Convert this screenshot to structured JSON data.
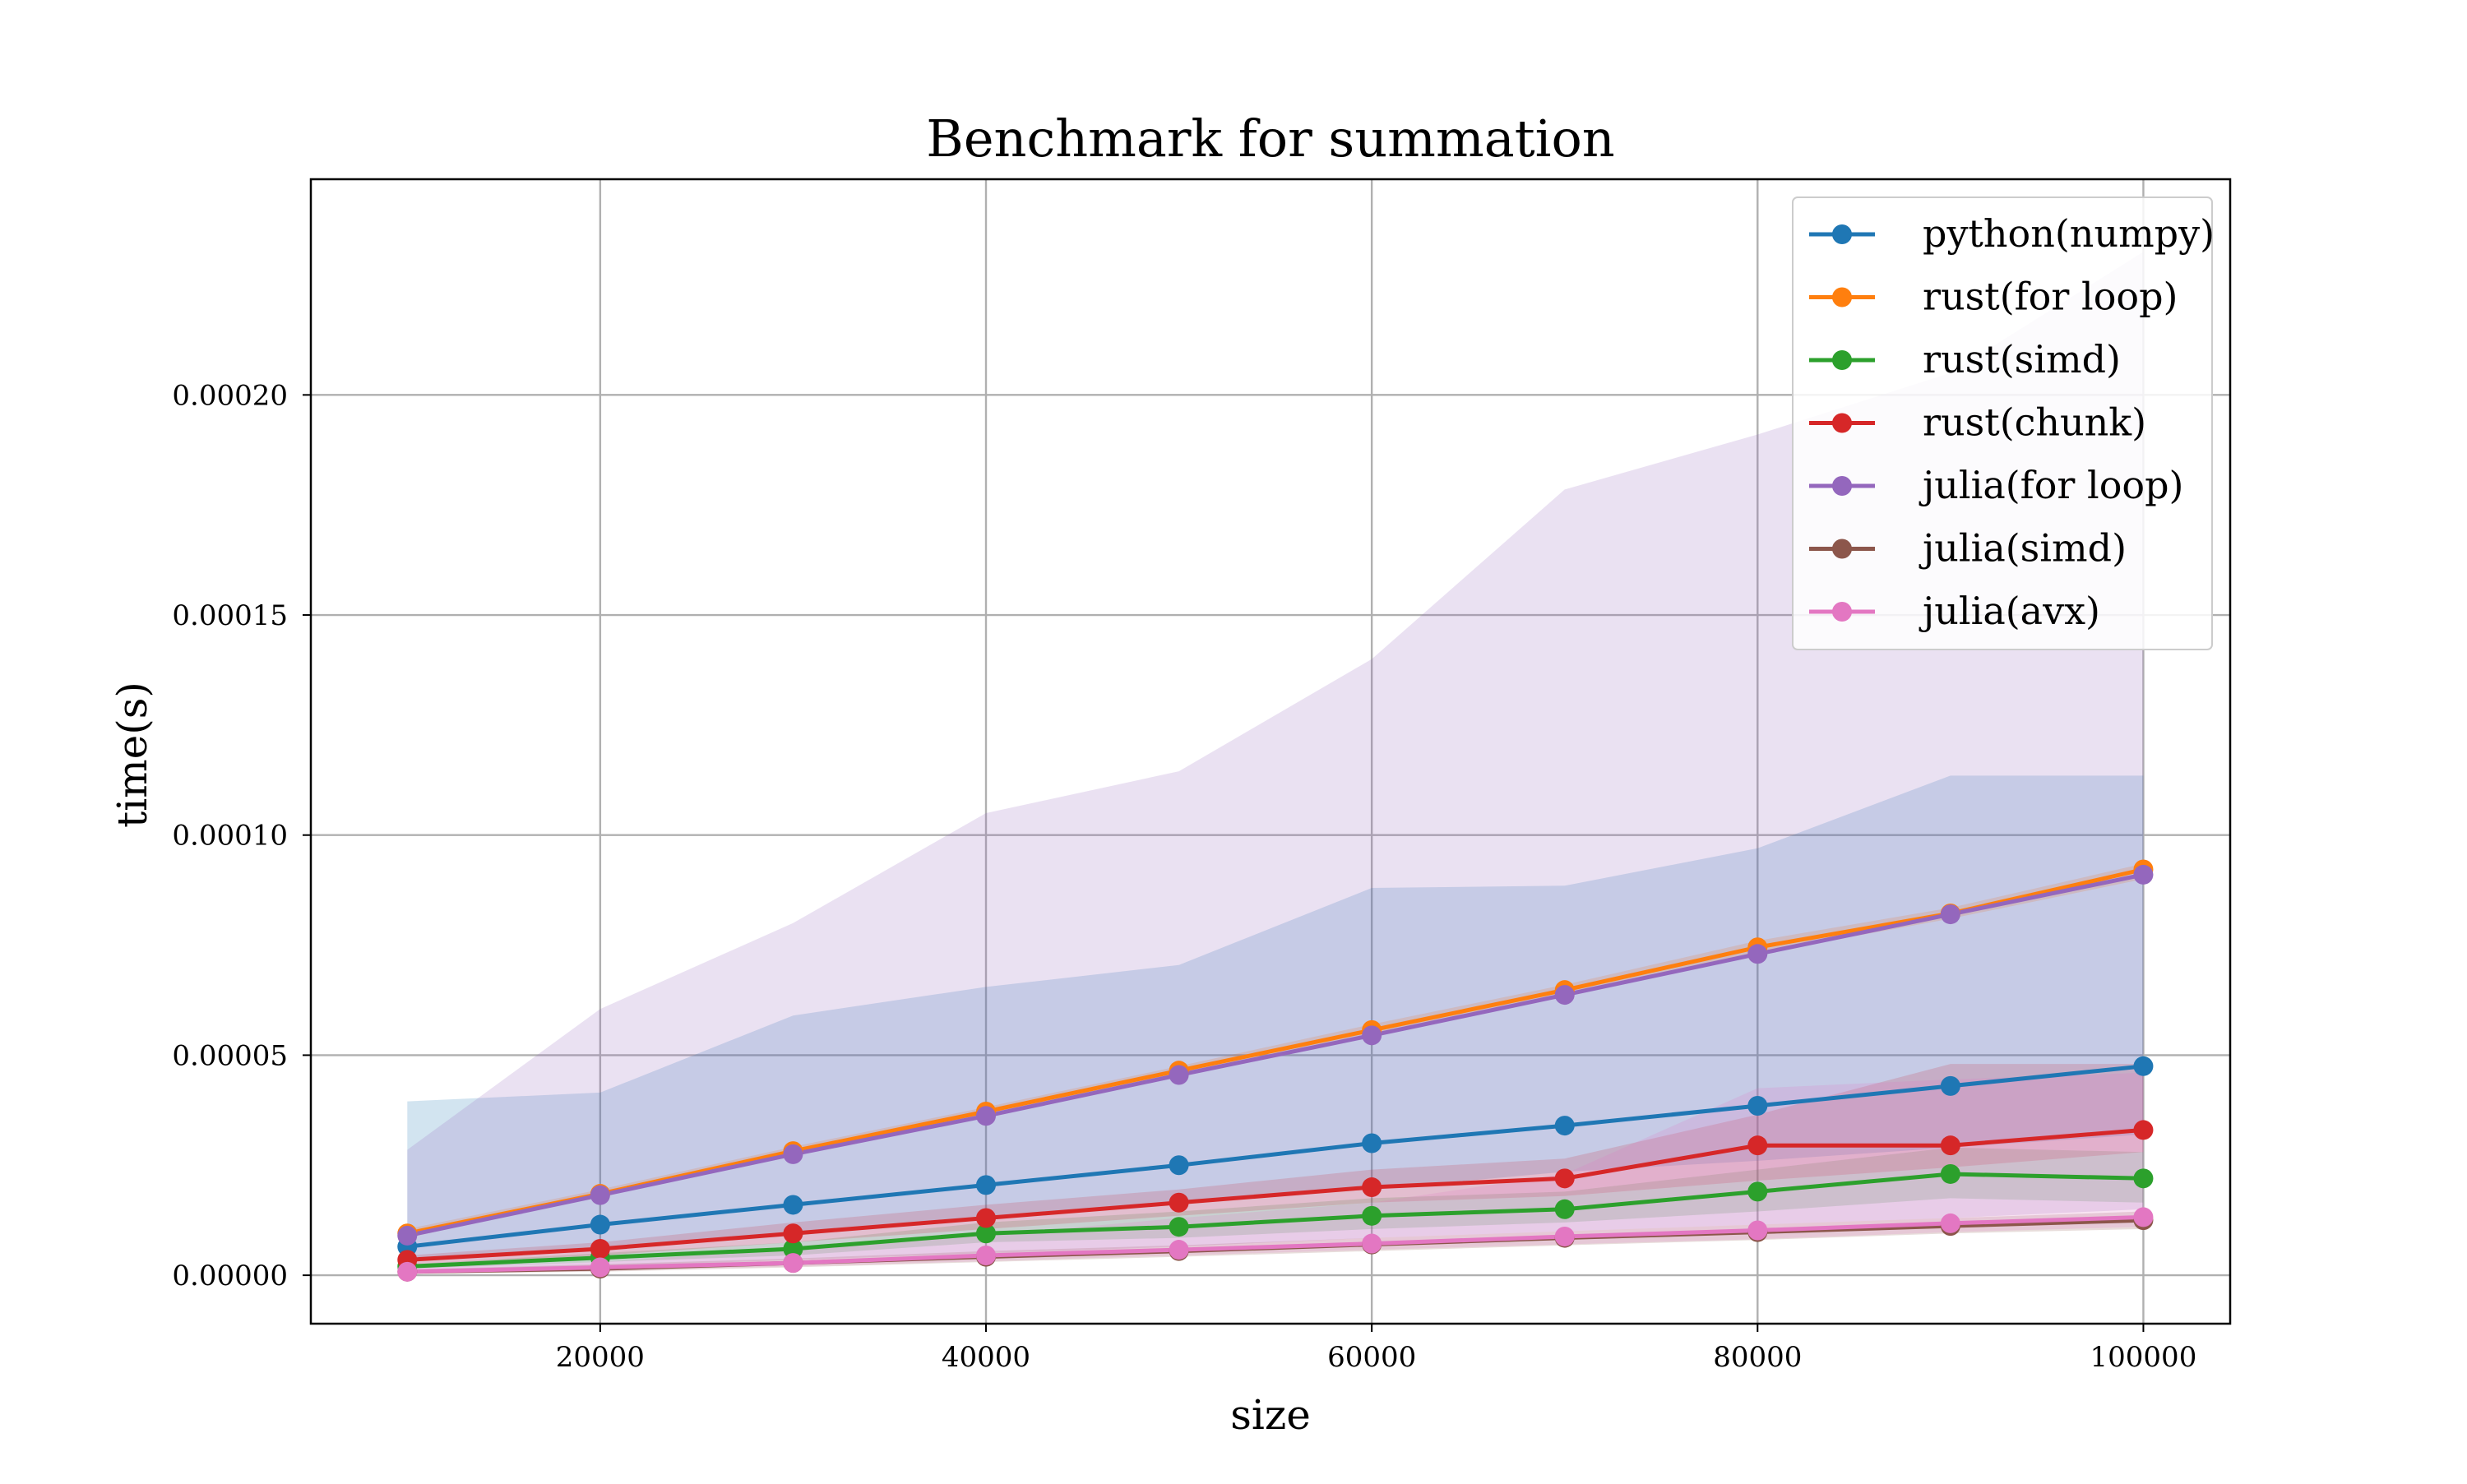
{
  "chart_data": {
    "type": "line",
    "title": "Benchmark for summation",
    "xlabel": "size",
    "ylabel": "time(s)",
    "xlim": [
      5000,
      104500
    ],
    "ylim": [
      -1.1e-05,
      0.000249
    ],
    "xticks": [
      20000,
      40000,
      60000,
      80000,
      100000
    ],
    "xtick_labels": [
      "20000",
      "40000",
      "60000",
      "80000",
      "100000"
    ],
    "yticks": [
      0,
      5e-05,
      0.0001,
      0.00015,
      0.0002
    ],
    "ytick_labels": [
      "0.00000",
      "0.00005",
      "0.00010",
      "0.00015",
      "0.00020"
    ],
    "grid": true,
    "legend_position": "top-right",
    "x": [
      10000,
      20000,
      30000,
      40000,
      50000,
      60000,
      70000,
      80000,
      90000,
      100000
    ],
    "series": [
      {
        "name": "python(numpy)",
        "color": "#1f77b4",
        "values": [
          6.5e-06,
          1.15e-05,
          1.6e-05,
          2.05e-05,
          2.5e-05,
          3e-05,
          3.4e-05,
          3.85e-05,
          4.3e-05,
          4.75e-05
        ],
        "band_lower": [
          3.5e-06,
          6.5e-06,
          9e-06,
          1.3e-05,
          1.65e-05,
          1.95e-05,
          2.35e-05,
          2.6e-05,
          2.9e-05,
          3.2e-05
        ],
        "band_upper": [
          3.95e-05,
          4.15e-05,
          5.9e-05,
          6.55e-05,
          7.05e-05,
          8.8e-05,
          8.85e-05,
          9.7e-05,
          0.0001135,
          0.0001135
        ]
      },
      {
        "name": "rust(for loop)",
        "color": "#ff7f0e",
        "values": [
          9.5e-06,
          1.85e-05,
          2.82e-05,
          3.72e-05,
          4.65e-05,
          5.57e-05,
          6.48e-05,
          7.45e-05,
          8.22e-05,
          9.22e-05
        ],
        "band_lower": [
          8.5e-06,
          1.8e-05,
          2.72e-05,
          3.62e-05,
          4.55e-05,
          5.45e-05,
          6.35e-05,
          7.3e-05,
          8.1e-05,
          9e-05
        ],
        "band_upper": [
          1.05e-05,
          1.95e-05,
          2.92e-05,
          3.82e-05,
          4.75e-05,
          5.7e-05,
          6.6e-05,
          7.6e-05,
          8.35e-05,
          9.35e-05
        ]
      },
      {
        "name": "rust(simd)",
        "color": "#2ca02c",
        "values": [
          2e-06,
          4e-06,
          6e-06,
          9.5e-06,
          1.1e-05,
          1.35e-05,
          1.5e-05,
          1.9e-05,
          2.3e-05,
          2.2e-05
        ],
        "band_lower": [
          1.5e-06,
          3e-06,
          4.5e-06,
          7.5e-06,
          8.5e-06,
          1.05e-05,
          1.2e-05,
          1.45e-05,
          1.75e-05,
          1.65e-05
        ],
        "band_upper": [
          2.5e-06,
          5e-06,
          7.5e-06,
          1.2e-05,
          1.45e-05,
          1.75e-05,
          1.9e-05,
          2.4e-05,
          2.9e-05,
          2.8e-05
        ]
      },
      {
        "name": "rust(chunk)",
        "color": "#d62728",
        "values": [
          3.5e-06,
          6e-06,
          9.5e-06,
          1.3e-05,
          1.65e-05,
          2e-05,
          2.2e-05,
          2.95e-05,
          2.95e-05,
          3.3e-05
        ],
        "band_lower": [
          2.5e-06,
          4.5e-06,
          7.5e-06,
          1.05e-05,
          1.35e-05,
          1.65e-05,
          1.8e-05,
          2.15e-05,
          2.45e-05,
          2.8e-05
        ],
        "band_upper": [
          4.5e-06,
          7.5e-06,
          1.2e-05,
          1.6e-05,
          1.95e-05,
          2.4e-05,
          2.65e-05,
          3.65e-05,
          4.8e-05,
          4.8e-05
        ]
      },
      {
        "name": "julia(for loop)",
        "color": "#9467bd",
        "values": [
          9e-06,
          1.82e-05,
          2.75e-05,
          3.62e-05,
          4.55e-05,
          5.45e-05,
          6.37e-05,
          7.3e-05,
          8.2e-05,
          9.1e-05
        ],
        "band_lower": [
          1e-06,
          2e-06,
          3.5e-06,
          5e-06,
          6.5e-06,
          8.5e-06,
          1e-05,
          1.15e-05,
          1.3e-05,
          1.5e-05
        ],
        "band_upper": [
          2.85e-05,
          6.05e-05,
          8e-05,
          0.000105,
          0.0001145,
          0.00014,
          0.0001785,
          0.000191,
          0.000205,
          0.0002325
        ]
      },
      {
        "name": "julia(simd)",
        "color": "#8c564b",
        "values": [
          8e-07,
          1.5e-06,
          2.8e-06,
          4.2e-06,
          5.5e-06,
          7e-06,
          8.5e-06,
          9.8e-06,
          1.12e-05,
          1.25e-05
        ],
        "band_lower": [
          3e-07,
          8e-07,
          1.8e-06,
          3e-06,
          4.2e-06,
          5.5e-06,
          6.8e-06,
          8e-06,
          9.5e-06,
          1.05e-05
        ],
        "band_upper": [
          1.3e-06,
          2.5e-06,
          3.8e-06,
          5.5e-06,
          6.8e-06,
          8.5e-06,
          1e-05,
          1.15e-05,
          1.3e-05,
          1.45e-05
        ]
      },
      {
        "name": "julia(avx)",
        "color": "#e377c2",
        "values": [
          8e-07,
          1.8e-06,
          2.8e-06,
          4.5e-06,
          5.8e-06,
          7.2e-06,
          8.8e-06,
          1.02e-05,
          1.18e-05,
          1.32e-05
        ],
        "band_lower": [
          3e-07,
          1e-06,
          2e-06,
          3.2e-06,
          4.5e-06,
          5.8e-06,
          7e-06,
          8.2e-06,
          9.8e-06,
          1.1e-05
        ],
        "band_upper": [
          1.8e-06,
          3e-06,
          6e-06,
          9e-06,
          1.3e-05,
          1.65e-05,
          2.3e-05,
          4.25e-05,
          4.45e-05,
          4.6e-05
        ]
      }
    ]
  }
}
